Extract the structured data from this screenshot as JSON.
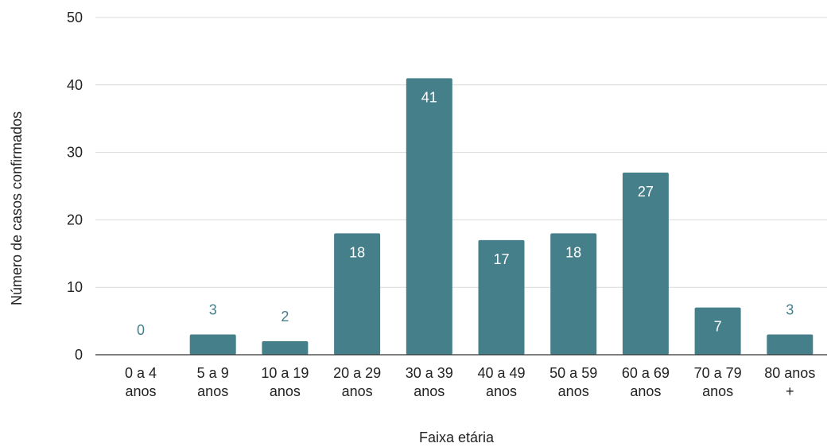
{
  "chart_data": {
    "type": "bar",
    "categories": [
      [
        "0 a 4",
        "anos"
      ],
      [
        "5 a 9",
        "anos"
      ],
      [
        "10 a 19",
        "anos"
      ],
      [
        "20 a 29",
        "anos"
      ],
      [
        "30 a 39",
        "anos"
      ],
      [
        "40 a 49",
        "anos"
      ],
      [
        "50 a 59",
        "anos"
      ],
      [
        "60 a 69",
        "anos"
      ],
      [
        "70 a 79",
        "anos"
      ],
      [
        "80 anos",
        "+"
      ]
    ],
    "values": [
      0,
      3,
      2,
      18,
      41,
      17,
      18,
      27,
      7,
      3
    ],
    "data_labels": [
      "0",
      "3",
      "2",
      "18",
      "41",
      "17",
      "18",
      "27",
      "7",
      "3"
    ],
    "xlabel": "Faixa etária",
    "ylabel": "Número de casos confirmados",
    "ylim": [
      0,
      50
    ],
    "yticks": [
      0,
      10,
      20,
      30,
      40,
      50
    ],
    "ytick_labels": [
      "0",
      "10",
      "20",
      "30",
      "40",
      "50"
    ],
    "grid": true,
    "legend": "none",
    "colors": {
      "bar": "#457f8a",
      "label_inside": "#ffffff",
      "label_outside": "#457f8a",
      "grid": "#d9d9d9",
      "baseline": "#333333"
    }
  }
}
